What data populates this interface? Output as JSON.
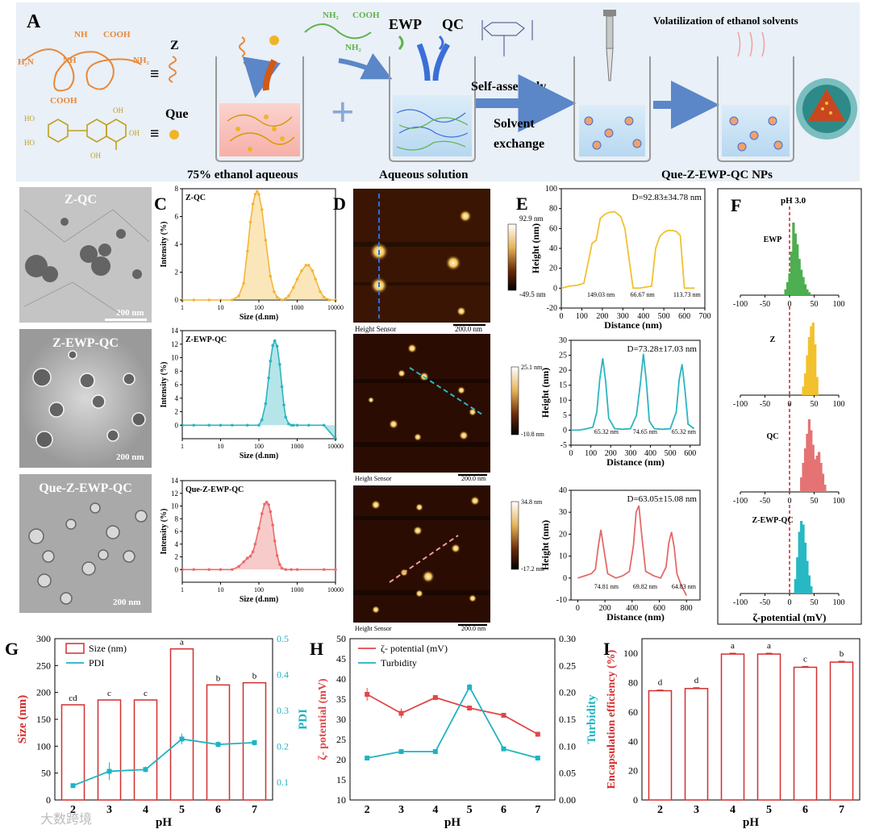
{
  "panelA": {
    "letter": "A",
    "z_label": "Z",
    "que_label": "Que",
    "nh2_a": "NH",
    "nh2_b": "H₂N",
    "cooh_a": "COOH",
    "cooh_b": "COOH",
    "nh2_c": "NH₂",
    "nh_d": "NH",
    "ho1": "HO",
    "ho2": "HO",
    "oh1": "OH",
    "oh2": "OH",
    "oh3": "OH",
    "ewp_nh2": "NH₂",
    "ewp_cooh": "COOH",
    "ewp_nh2b": "NH₂",
    "ewp_label": "EWP",
    "qc_label": "QC",
    "beaker1_caption": "75% ethanol aqueous",
    "beaker2_caption": "Aqueous solution",
    "step_self": "Self-assembly",
    "step_solvent": "Solvent",
    "step_exchange": "exchange",
    "volatilization": "Volatilization of ethanol solvents",
    "final_caption": "Que-Z-EWP-QC NPs",
    "colors": {
      "banner": "#e9f0f7",
      "zein": "#e8883a",
      "que": "#f0b429",
      "ewp": "#5fb24a",
      "qc": "#3a6fd8",
      "arrow": "#5b86c8"
    }
  },
  "panelB": {
    "letter": "B",
    "images": [
      {
        "label": "Z-QC",
        "scale": "200 nm"
      },
      {
        "label": "Z-EWP-QC",
        "scale": "200 nm"
      },
      {
        "label": "Que-Z-EWP-QC",
        "scale": "200 nm"
      }
    ]
  },
  "panelC": {
    "letter": "C",
    "charts": [
      {
        "type": "area",
        "title": "Z-QC",
        "xlabel": "Size (d.nm)",
        "ylabel": "Intensity (%)",
        "color": "#f3b63a",
        "ylim": [
          0,
          8
        ],
        "yticks": [
          0,
          2,
          4,
          6,
          8
        ],
        "xticks": [
          "1",
          "10",
          "100",
          "1000",
          "10000"
        ],
        "x": [
          1,
          2,
          5,
          10,
          20,
          30,
          40,
          50,
          60,
          70,
          80,
          90,
          100,
          120,
          150,
          200,
          250,
          300,
          400,
          500,
          600,
          800,
          1000,
          1300,
          1700,
          2000,
          2500,
          3000,
          4000,
          5000,
          7000,
          10000
        ],
        "values": [
          0,
          0,
          0,
          0,
          0,
          0.3,
          1.2,
          3.5,
          5.6,
          6.9,
          7.6,
          7.8,
          7.6,
          6.5,
          4.3,
          1.7,
          0.6,
          0.2,
          0,
          0.1,
          0.3,
          0.9,
          1.5,
          2.1,
          2.5,
          2.5,
          2.1,
          1.5,
          0.6,
          0.2,
          0,
          0
        ]
      },
      {
        "type": "area",
        "title": "Z-EWP-QC",
        "xlabel": "Size (d.nm)",
        "ylabel": "Intensity (%)",
        "color": "#2bb5c0",
        "ylim": [
          -2,
          14
        ],
        "yticks": [
          0,
          2,
          4,
          6,
          8,
          10,
          12,
          14
        ],
        "xticks": [
          "1",
          "10",
          "100",
          "1000",
          "10000"
        ],
        "x": [
          1,
          2,
          5,
          10,
          20,
          50,
          100,
          120,
          150,
          180,
          200,
          230,
          260,
          300,
          350,
          400,
          450,
          500,
          600,
          700,
          800,
          1000,
          2000,
          5000,
          10000
        ],
        "values": [
          0,
          0,
          0,
          0,
          0,
          0,
          0,
          0.8,
          3.2,
          7.0,
          9.5,
          11.8,
          12.5,
          11.7,
          9.0,
          5.7,
          3.0,
          1.2,
          0.2,
          0,
          0,
          0,
          0,
          0,
          -2
        ]
      },
      {
        "type": "area",
        "title": "Que-Z-EWP-QC",
        "xlabel": "Size (d.nm)",
        "ylabel": "Intensity (%)",
        "color": "#ec6b6b",
        "ylim": [
          -2,
          14
        ],
        "yticks": [
          0,
          2,
          4,
          6,
          8,
          10,
          12,
          14
        ],
        "xticks": [
          "1",
          "10",
          "100",
          "1000",
          "10000"
        ],
        "x": [
          1,
          2,
          5,
          10,
          20,
          30,
          40,
          50,
          60,
          70,
          80,
          100,
          120,
          140,
          160,
          180,
          200,
          230,
          260,
          300,
          350,
          400,
          500,
          700,
          1000,
          5000,
          10000
        ],
        "values": [
          0,
          0,
          0,
          0,
          0,
          0.5,
          1.2,
          1.8,
          2.1,
          2.8,
          4.0,
          6.5,
          8.8,
          10.3,
          10.6,
          10.2,
          9.1,
          7.0,
          4.5,
          2.2,
          0.8,
          0.2,
          0,
          0,
          0,
          0,
          0
        ]
      }
    ]
  },
  "panelD": {
    "letter": "D",
    "images": [
      {
        "top": "92.9 nm",
        "bottom": "-49.5 nm",
        "sensor": "Height Sensor",
        "scale": "200.0 nm"
      },
      {
        "top": "25.1 nm",
        "bottom": "-10.8 nm",
        "sensor": "Height Sensor",
        "scale": "200.0 nm"
      },
      {
        "top": "34.8 nm",
        "bottom": "-17.2 nm",
        "sensor": "Height Sensor",
        "scale": "200.0 nm"
      }
    ]
  },
  "panelE": {
    "letter": "E",
    "charts": [
      {
        "type": "line",
        "annotation": "D=92.83±34.78 nm",
        "xlabel": "Distance (nm)",
        "ylabel": "Height (nm)",
        "color": "#f0c12f",
        "xlim": [
          0,
          700
        ],
        "ylim": [
          -20,
          100
        ],
        "xticks": [
          0,
          100,
          200,
          300,
          400,
          500,
          600,
          700
        ],
        "yticks": [
          -20,
          0,
          20,
          40,
          60,
          80,
          100
        ],
        "x": [
          0,
          40,
          80,
          110,
          130,
          150,
          170,
          190,
          210,
          230,
          260,
          290,
          310,
          330,
          350,
          380,
          410,
          440,
          460,
          480,
          500,
          520,
          540,
          560,
          580,
          600,
          620,
          650
        ],
        "values": [
          0,
          2,
          3,
          5,
          25,
          45,
          48,
          70,
          74,
          76,
          77,
          72,
          60,
          30,
          0,
          0,
          1,
          2,
          40,
          52,
          56,
          58,
          58,
          57,
          53,
          0,
          0,
          0
        ],
        "widths": [
          "149.03 nm",
          "66.67 nm",
          "113.73 nm"
        ]
      },
      {
        "type": "line",
        "annotation": "D=73.28±17.03 nm",
        "xlabel": "Distance (nm)",
        "ylabel": "Height (nm)",
        "color": "#2bb5c0",
        "xlim": [
          0,
          650
        ],
        "ylim": [
          -5,
          30
        ],
        "xticks": [
          0,
          100,
          200,
          300,
          400,
          500,
          600
        ],
        "yticks": [
          -5,
          0,
          5,
          10,
          15,
          20,
          25,
          30
        ],
        "x": [
          0,
          40,
          80,
          110,
          130,
          145,
          160,
          175,
          190,
          220,
          260,
          300,
          330,
          350,
          365,
          380,
          395,
          420,
          460,
          500,
          530,
          545,
          560,
          575,
          590,
          620
        ],
        "values": [
          0,
          0,
          0.5,
          1,
          6,
          17,
          24,
          16,
          4,
          0.5,
          0.3,
          0.5,
          5,
          16,
          25.5,
          16,
          3,
          0.5,
          0.3,
          0.5,
          6,
          17,
          22,
          13,
          2,
          0.5
        ],
        "widths": [
          "65.32 nm",
          "74.65 nm",
          "65.32 nm"
        ]
      },
      {
        "type": "line",
        "annotation": "D=63.05±15.08 nm",
        "xlabel": "Distance (nm)",
        "ylabel": "Height (nm)",
        "color": "#e46a6a",
        "xlim": [
          -50,
          900
        ],
        "ylim": [
          -10,
          40
        ],
        "xticks": [
          0,
          200,
          400,
          600,
          800
        ],
        "yticks": [
          -10,
          0,
          10,
          20,
          30,
          40
        ],
        "x": [
          0,
          50,
          100,
          130,
          150,
          170,
          190,
          220,
          280,
          330,
          380,
          410,
          430,
          450,
          470,
          500,
          560,
          610,
          650,
          670,
          690,
          710,
          730,
          760,
          800
        ],
        "values": [
          0,
          1,
          2,
          4,
          14,
          22,
          14,
          2,
          0,
          1,
          3,
          15,
          30,
          33,
          20,
          3,
          1,
          0,
          5,
          16,
          21,
          14,
          2,
          -3,
          -8
        ],
        "widths": [
          "74.81 nm",
          "69.82 nm",
          "64.83 nm"
        ]
      }
    ]
  },
  "panelF": {
    "letter": "F",
    "ph_label": "pH 3.0",
    "xlabel": "ζ-potential (mV)",
    "xticks": [
      -100,
      -50,
      0,
      50,
      100
    ],
    "series": [
      {
        "name": "EWP",
        "color": "#4caf50",
        "x": [
          -8,
          -4,
          0,
          4,
          8,
          12,
          16,
          20,
          24,
          28,
          32,
          36,
          40
        ],
        "values": [
          0.08,
          0.18,
          0.3,
          0.6,
          1.0,
          0.85,
          0.7,
          0.5,
          0.35,
          0.25,
          0.15,
          0.08,
          0.04
        ]
      },
      {
        "name": "Z",
        "color": "#f2c12e",
        "x": [
          28,
          32,
          36,
          40,
          44,
          48,
          52,
          56
        ],
        "values": [
          0.12,
          0.3,
          0.55,
          0.8,
          0.95,
          1.0,
          0.7,
          0.25
        ]
      },
      {
        "name": "QC",
        "color": "#e57373",
        "x": [
          24,
          28,
          32,
          36,
          40,
          44,
          48,
          52,
          56,
          60,
          64,
          68,
          72
        ],
        "values": [
          0.2,
          0.4,
          0.6,
          0.8,
          1.0,
          0.85,
          0.65,
          0.45,
          0.5,
          0.55,
          0.4,
          0.25,
          0.1
        ]
      },
      {
        "name": "Z-EWP-QC",
        "color": "#26b9c4",
        "x": [
          12,
          16,
          20,
          24,
          28,
          32,
          36,
          40,
          44
        ],
        "values": [
          0.2,
          0.5,
          0.85,
          1.0,
          0.95,
          0.7,
          0.45,
          0.25,
          0.1
        ]
      }
    ]
  },
  "panelG": {
    "letter": "G",
    "type": "bar",
    "categories": [
      "2",
      "3",
      "4",
      "5",
      "6",
      "7"
    ],
    "xlabel": "pH",
    "ylabel_left": "Size (nm)",
    "ylabel_right": "PDI",
    "ylim": [
      0,
      300
    ],
    "ylim_right": [
      0.05,
      0.5
    ],
    "yticks": [
      0,
      50,
      100,
      150,
      200,
      250,
      300
    ],
    "yticks_right": [
      "0.1",
      "0.2",
      "0.3",
      "0.4",
      "0.5"
    ],
    "series": [
      {
        "name": "Size (nm)",
        "values": [
          177,
          186,
          186,
          281,
          214,
          218
        ],
        "errors": [
          2,
          2,
          2,
          2,
          2,
          2
        ]
      },
      {
        "name": "PDI",
        "values": [
          0.09,
          0.13,
          0.135,
          0.22,
          0.205,
          0.21
        ],
        "errors": [
          0.006,
          0.025,
          0.008,
          0.015,
          0.008,
          0.008
        ]
      }
    ],
    "letters": [
      "cd",
      "c",
      "c",
      "a",
      "b",
      "b"
    ]
  },
  "panelH": {
    "letter": "H",
    "type": "line",
    "categories": [
      "2",
      "3",
      "4",
      "5",
      "6",
      "7"
    ],
    "xlabel": "pH",
    "ylabel_left": "ζ- potential (mV)",
    "ylabel_right": "Turbidity",
    "ylim": [
      10,
      50
    ],
    "ylim_right": [
      0,
      0.3
    ],
    "yticks": [
      10,
      15,
      20,
      25,
      30,
      35,
      40,
      45,
      50
    ],
    "yticks_right": [
      "0.00",
      "0.05",
      "0.10",
      "0.15",
      "0.20",
      "0.25",
      "0.30"
    ],
    "series": [
      {
        "name": "ζ- potential (mV)",
        "values": [
          36.2,
          31.5,
          35.4,
          32.8,
          31.0,
          26.3
        ],
        "errors": [
          1.6,
          1.2,
          0.4,
          0.6,
          0.3,
          0.4
        ]
      },
      {
        "name": "Turbidity",
        "values": [
          0.078,
          0.09,
          0.09,
          0.21,
          0.095,
          0.078
        ],
        "errors": [
          0.002,
          0.002,
          0.002,
          0.006,
          0.003,
          0.002
        ]
      }
    ]
  },
  "panelI": {
    "letter": "I",
    "type": "bar",
    "categories": [
      "2",
      "3",
      "4",
      "5",
      "6",
      "7"
    ],
    "xlabel": "pH",
    "ylabel": "Encapsulation efficiency (%)",
    "ylim": [
      0,
      110
    ],
    "yticks": [
      0,
      20,
      40,
      60,
      80,
      100
    ],
    "values": [
      74.5,
      76,
      99.5,
      99.5,
      90.5,
      94
    ],
    "errors": [
      0.5,
      0.6,
      0.6,
      0.6,
      0.6,
      0.6
    ],
    "letters": [
      "d",
      "d",
      "a",
      "a",
      "c",
      "b"
    ]
  },
  "watermark": "大数跨境"
}
